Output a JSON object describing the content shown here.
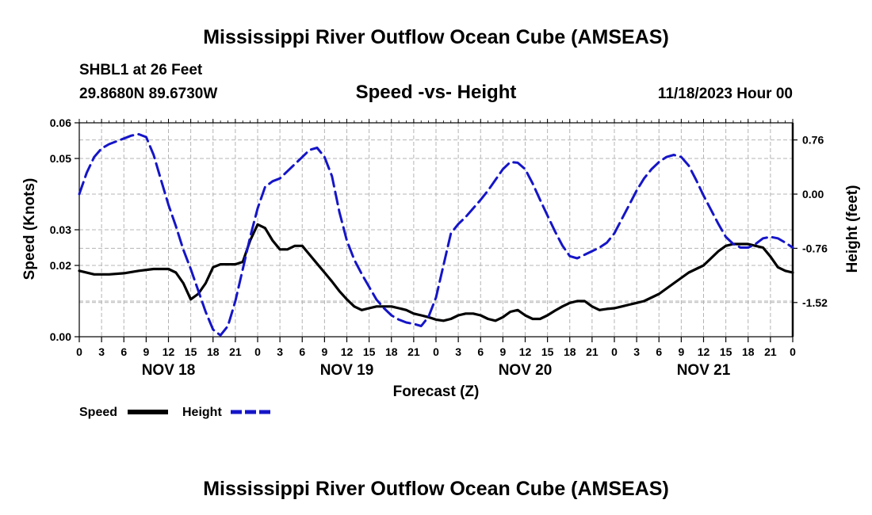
{
  "title": "Mississippi River Outflow Ocean Cube (AMSEAS)",
  "bottom_title": "Mississippi River Outflow Ocean Cube (AMSEAS)",
  "station": {
    "name": "SHBL1 at 26 Feet",
    "coords": "29.8680N  89.6730W",
    "date": "11/18/2023 Hour 00"
  },
  "colors": {
    "speed": "#000000",
    "height": "#1515c8",
    "grid": "#b4b4b4"
  },
  "chart_data": {
    "type": "line",
    "title": "Speed -vs- Height",
    "xlabel": "Forecast (Z)",
    "ylabel": "Speed (Knots)",
    "y2label": "Height (feet)",
    "xlim": [
      0,
      96
    ],
    "ylim": [
      0,
      0.06
    ],
    "y2lim": [
      -2.0,
      1.0
    ],
    "x_ticks": [
      0,
      3,
      6,
      9,
      12,
      15,
      18,
      21,
      24,
      27,
      30,
      33,
      36,
      39,
      42,
      45,
      48,
      51,
      54,
      57,
      60,
      63,
      66,
      69,
      72,
      75,
      78,
      81,
      84,
      87,
      90,
      93,
      96
    ],
    "x_tick_labels": [
      "0",
      "3",
      "6",
      "9",
      "12",
      "15",
      "18",
      "21",
      "0",
      "3",
      "6",
      "9",
      "12",
      "15",
      "18",
      "21",
      "0",
      "3",
      "6",
      "9",
      "12",
      "15",
      "18",
      "21",
      "0",
      "3",
      "6",
      "9",
      "12",
      "15",
      "18",
      "21",
      "0"
    ],
    "day_labels": [
      {
        "x": 12,
        "label": "NOV 18"
      },
      {
        "x": 36,
        "label": "NOV 19"
      },
      {
        "x": 60,
        "label": "NOV 20"
      },
      {
        "x": 84,
        "label": "NOV 21"
      }
    ],
    "y_ticks": [
      0,
      0.02,
      0.03,
      0.05,
      0.06
    ],
    "y_tick_labels": [
      "0.00",
      "0.02",
      "0.03",
      "0.05",
      "0.06"
    ],
    "y2_ticks": [
      -1.52,
      -0.76,
      0.0,
      0.76
    ],
    "y2_tick_labels": [
      "-1.52",
      "-0.76",
      "0.00",
      "0.76"
    ],
    "series": [
      {
        "name": "Speed",
        "axis": "left",
        "style": "solid",
        "x": [
          0,
          2,
          4,
          6,
          8,
          10,
          12,
          13,
          14,
          15,
          16,
          17,
          18,
          19,
          20,
          21,
          22,
          23,
          24,
          25,
          26,
          27,
          28,
          29,
          30,
          31,
          32,
          33,
          34,
          35,
          36,
          37,
          38,
          39,
          40,
          41,
          42,
          43,
          44,
          45,
          46,
          47,
          48,
          49,
          50,
          51,
          52,
          53,
          54,
          55,
          56,
          57,
          58,
          59,
          60,
          61,
          62,
          63,
          64,
          65,
          66,
          67,
          68,
          69,
          70,
          71,
          72,
          73,
          74,
          75,
          76,
          78,
          80,
          82,
          84,
          85,
          86,
          87,
          88,
          89,
          90,
          91,
          92,
          93,
          94,
          95,
          96
        ],
        "values": [
          0.0185,
          0.0175,
          0.0175,
          0.0178,
          0.0185,
          0.019,
          0.019,
          0.018,
          0.015,
          0.0105,
          0.012,
          0.015,
          0.0195,
          0.0203,
          0.0203,
          0.0203,
          0.021,
          0.027,
          0.0315,
          0.0305,
          0.027,
          0.0245,
          0.0245,
          0.0255,
          0.0255,
          0.023,
          0.0205,
          0.018,
          0.0155,
          0.0128,
          0.0105,
          0.0085,
          0.0075,
          0.008,
          0.0085,
          0.0085,
          0.0085,
          0.008,
          0.0075,
          0.0065,
          0.006,
          0.0055,
          0.0048,
          0.0045,
          0.005,
          0.006,
          0.0065,
          0.0065,
          0.006,
          0.005,
          0.0045,
          0.0055,
          0.007,
          0.0075,
          0.006,
          0.005,
          0.005,
          0.006,
          0.0073,
          0.0085,
          0.0095,
          0.01,
          0.01,
          0.0085,
          0.0075,
          0.0078,
          0.008,
          0.0085,
          0.009,
          0.0095,
          0.01,
          0.012,
          0.015,
          0.018,
          0.02,
          0.022,
          0.024,
          0.0255,
          0.026,
          0.026,
          0.026,
          0.0255,
          0.025,
          0.0225,
          0.0195,
          0.0185,
          0.018
        ]
      },
      {
        "name": "Height",
        "axis": "right",
        "style": "dashed",
        "x": [
          0,
          1,
          2,
          3,
          4,
          5,
          6,
          7,
          8,
          9,
          10,
          11,
          12,
          13,
          14,
          15,
          16,
          17,
          18,
          19,
          20,
          21,
          22,
          23,
          24,
          25,
          26,
          27,
          28,
          29,
          30,
          31,
          32,
          33,
          34,
          35,
          36,
          37,
          38,
          39,
          40,
          41,
          42,
          43,
          44,
          45,
          46,
          47,
          48,
          49,
          50,
          51,
          52,
          53,
          54,
          55,
          56,
          57,
          58,
          59,
          60,
          61,
          62,
          63,
          64,
          65,
          66,
          67,
          68,
          69,
          70,
          71,
          72,
          73,
          74,
          75,
          76,
          77,
          78,
          79,
          80,
          81,
          82,
          83,
          84,
          85,
          86,
          87,
          88,
          89,
          90,
          91,
          92,
          93,
          94,
          95,
          96
        ],
        "values": [
          0.0,
          0.3,
          0.52,
          0.64,
          0.7,
          0.74,
          0.78,
          0.82,
          0.84,
          0.8,
          0.55,
          0.2,
          -0.15,
          -0.45,
          -0.78,
          -1.05,
          -1.35,
          -1.65,
          -1.9,
          -1.98,
          -1.85,
          -1.5,
          -1.05,
          -0.6,
          -0.2,
          0.1,
          0.18,
          0.22,
          0.32,
          0.42,
          0.52,
          0.62,
          0.65,
          0.52,
          0.25,
          -0.25,
          -0.65,
          -0.92,
          -1.12,
          -1.3,
          -1.48,
          -1.6,
          -1.7,
          -1.76,
          -1.8,
          -1.82,
          -1.85,
          -1.72,
          -1.45,
          -1.0,
          -0.55,
          -0.42,
          -0.32,
          -0.2,
          -0.08,
          0.05,
          0.2,
          0.35,
          0.45,
          0.44,
          0.35,
          0.15,
          -0.08,
          -0.3,
          -0.52,
          -0.72,
          -0.87,
          -0.9,
          -0.85,
          -0.8,
          -0.75,
          -0.68,
          -0.55,
          -0.35,
          -0.15,
          0.05,
          0.22,
          0.35,
          0.45,
          0.52,
          0.55,
          0.52,
          0.4,
          0.2,
          -0.02,
          -0.22,
          -0.42,
          -0.6,
          -0.7,
          -0.75,
          -0.75,
          -0.7,
          -0.62,
          -0.6,
          -0.62,
          -0.68,
          -0.75
        ]
      }
    ],
    "legend": [
      {
        "label": "Speed",
        "series": "Speed"
      },
      {
        "label": "Height",
        "series": "Height"
      }
    ]
  }
}
